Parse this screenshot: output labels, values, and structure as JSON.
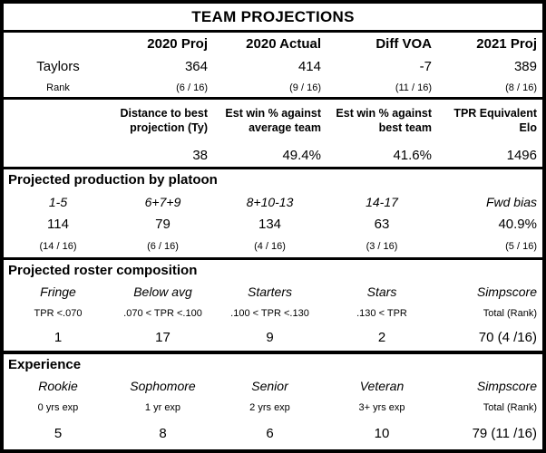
{
  "title": "TEAM PROJECTIONS",
  "summary": {
    "row_label": "Taylors",
    "rank_label": "Rank",
    "columns": [
      "2020 Proj",
      "2020 Actual",
      "Diff VOA",
      "2021 Proj"
    ],
    "values": [
      "364",
      "414",
      "-7",
      "389"
    ],
    "ranks": [
      "(6 / 16)",
      "(9 / 16)",
      "(11 / 16)",
      "(8 / 16)"
    ]
  },
  "metrics": {
    "columns": [
      "Distance to best projection (Ty)",
      "Est win % against average team",
      "Est win % against best team",
      "TPR Equivalent Elo"
    ],
    "values": [
      "38",
      "49.4%",
      "41.6%",
      "1496"
    ]
  },
  "platoon": {
    "section_title": "Projected production by platoon",
    "columns": [
      "1-5",
      "6+7+9",
      "8+10-13",
      "14-17",
      "Fwd bias"
    ],
    "values": [
      "114",
      "79",
      "134",
      "63",
      "40.9%"
    ],
    "ranks": [
      "(14 / 16)",
      "(6 / 16)",
      "(4 / 16)",
      "(3 / 16)",
      "(5 / 16)"
    ]
  },
  "roster": {
    "section_title": "Projected roster composition",
    "columns": [
      "Fringe",
      "Below avg",
      "Starters",
      "Stars",
      "Simpscore"
    ],
    "ranges": [
      "TPR <.070",
      ".070 < TPR <.100",
      ".100 < TPR <.130",
      ".130 < TPR",
      "Total (Rank)"
    ],
    "values": [
      "1",
      "17",
      "9",
      "2",
      "70 (4 /16)"
    ]
  },
  "experience": {
    "section_title": "Experience",
    "columns": [
      "Rookie",
      "Sophomore",
      "Senior",
      "Veteran",
      "Simpscore"
    ],
    "ranges": [
      "0 yrs exp",
      "1 yr exp",
      "2 yrs exp",
      "3+ yrs exp",
      "Total (Rank)"
    ],
    "values": [
      "5",
      "8",
      "6",
      "10",
      "79 (11 /16)"
    ]
  },
  "chart_data": [
    {
      "type": "table",
      "title": "TEAM PROJECTIONS",
      "section": "Summary",
      "columns": [
        "",
        "2020 Proj",
        "2020 Actual",
        "Diff VOA",
        "2021 Proj"
      ],
      "rows": [
        [
          "Taylors",
          "364",
          "414",
          "-7",
          "389"
        ],
        [
          "Rank",
          "(6 / 16)",
          "(9 / 16)",
          "(11 / 16)",
          "(8 / 16)"
        ]
      ]
    },
    {
      "type": "table",
      "section": "Metrics",
      "columns": [
        "Distance to best projection (Ty)",
        "Est win % against average team",
        "Est win % against best team",
        "TPR Equivalent Elo"
      ],
      "rows": [
        [
          "38",
          "49.4%",
          "41.6%",
          "1496"
        ]
      ]
    },
    {
      "type": "table",
      "section": "Projected production by platoon",
      "columns": [
        "1-5",
        "6+7+9",
        "8+10-13",
        "14-17",
        "Fwd bias"
      ],
      "rows": [
        [
          "114",
          "79",
          "134",
          "63",
          "40.9%"
        ],
        [
          "(14 / 16)",
          "(6 / 16)",
          "(4 / 16)",
          "(3 / 16)",
          "(5 / 16)"
        ]
      ]
    },
    {
      "type": "table",
      "section": "Projected roster composition",
      "columns": [
        "Fringe",
        "Below avg",
        "Starters",
        "Stars",
        "Simpscore"
      ],
      "rows": [
        [
          "TPR <.070",
          ".070 < TPR <.100",
          ".100 < TPR <.130",
          ".130 < TPR",
          "Total (Rank)"
        ],
        [
          "1",
          "17",
          "9",
          "2",
          "70 (4 /16)"
        ]
      ]
    },
    {
      "type": "table",
      "section": "Experience",
      "columns": [
        "Rookie",
        "Sophomore",
        "Senior",
        "Veteran",
        "Simpscore"
      ],
      "rows": [
        [
          "0 yrs exp",
          "1 yr exp",
          "2 yrs exp",
          "3+ yrs exp",
          "Total (Rank)"
        ],
        [
          "5",
          "8",
          "6",
          "10",
          "79 (11 /16)"
        ]
      ]
    }
  ],
  "colors": {
    "text": "#000000",
    "background": "#ffffff",
    "border": "#000000"
  }
}
